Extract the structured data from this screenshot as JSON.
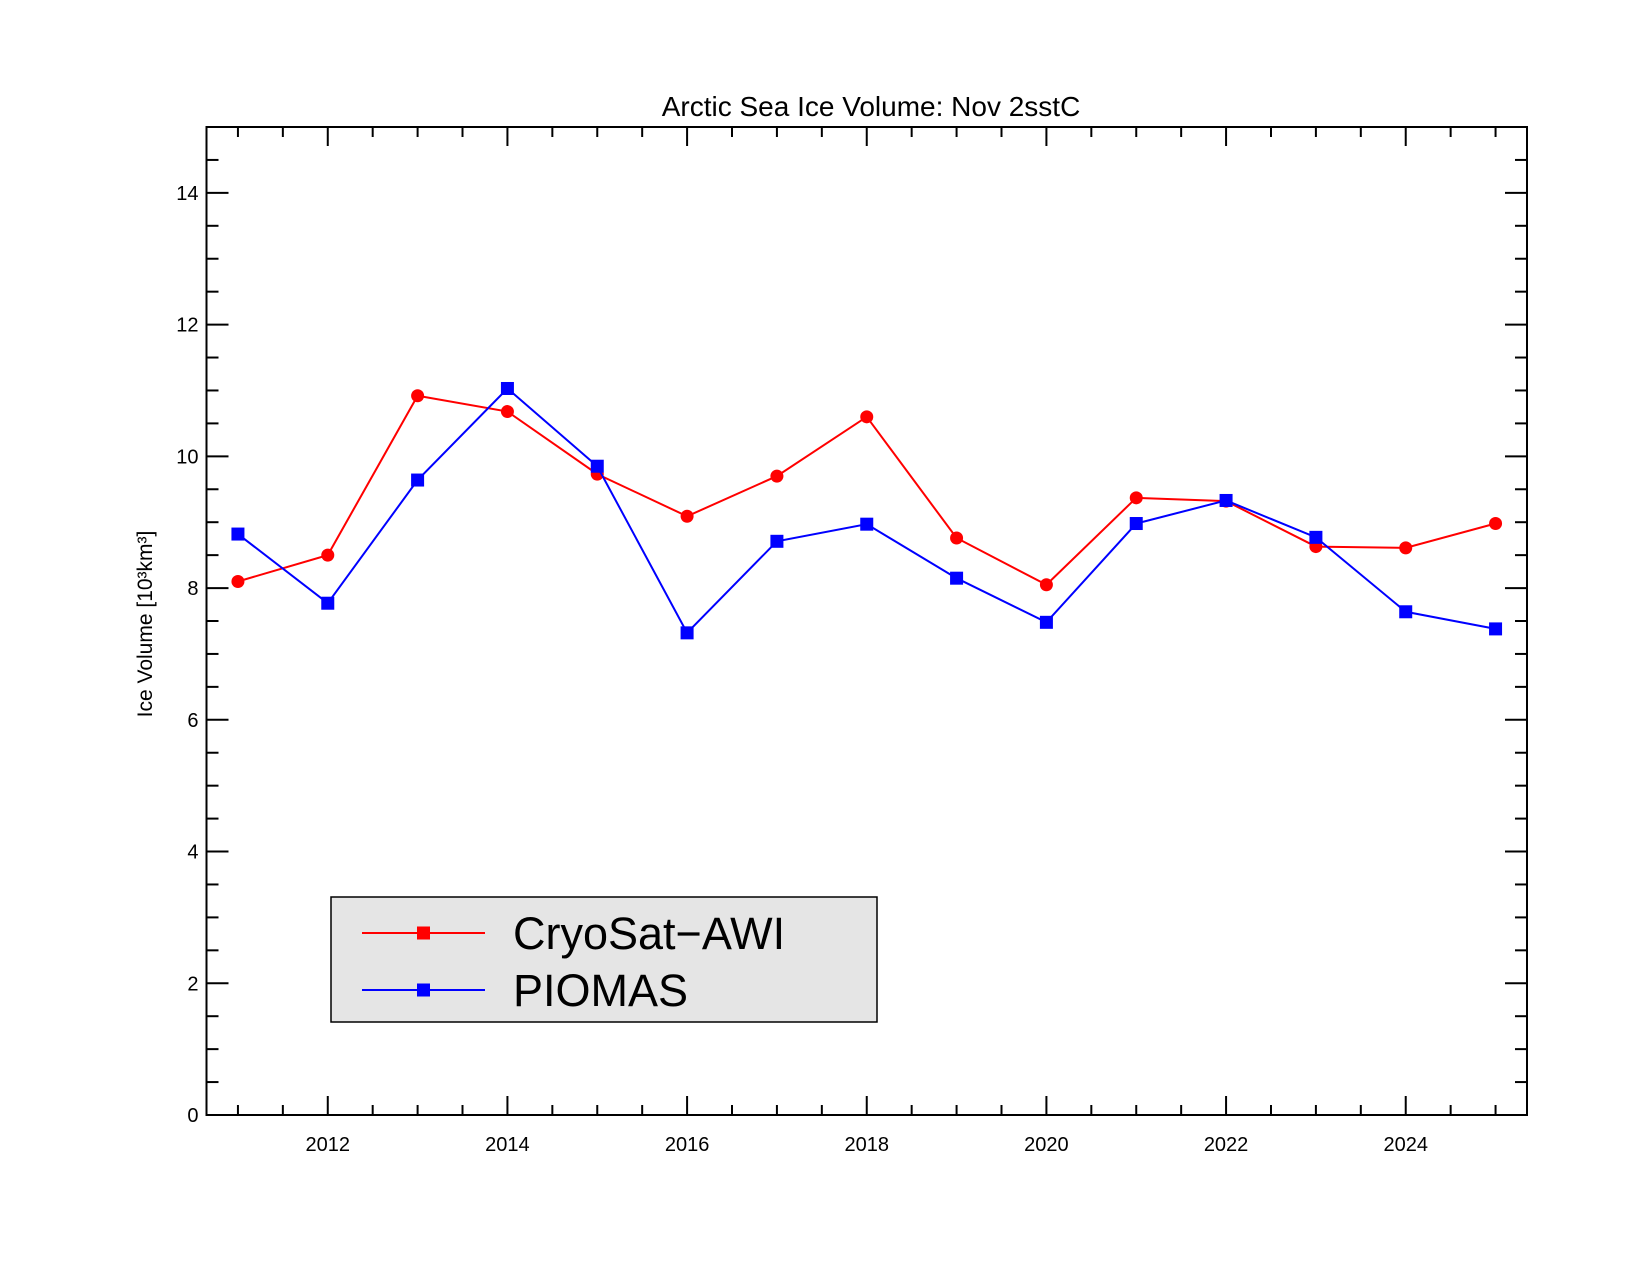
{
  "chart_data": {
    "type": "line",
    "title": "Arctic Sea Ice Volume: Nov 2sstC",
    "xlabel": "",
    "ylabel": "Ice Volume [10³km³]",
    "xlim": [
      2010.65,
      2025.35
    ],
    "ylim": [
      0,
      15
    ],
    "xticks": [
      2012,
      2014,
      2016,
      2018,
      2020,
      2022,
      2024
    ],
    "xtick_labels": [
      "2012",
      "2014",
      "2016",
      "2018",
      "2020",
      "2022",
      "2024"
    ],
    "yticks": [
      0,
      2,
      4,
      6,
      8,
      10,
      12,
      14
    ],
    "ytick_labels": [
      "0",
      "2",
      "4",
      "6",
      "8",
      "10",
      "12",
      "14"
    ],
    "grid": false,
    "legend_position": "bottom-left",
    "x": [
      2011,
      2012,
      2013,
      2014,
      2015,
      2016,
      2017,
      2018,
      2019,
      2020,
      2021,
      2022,
      2023,
      2024,
      2025
    ],
    "series": [
      {
        "name": "CryoSat−AWI",
        "color": "#ff0000",
        "marker": "circle",
        "values": [
          8.1,
          8.5,
          10.92,
          10.68,
          9.73,
          9.09,
          9.7,
          10.6,
          8.76,
          8.05,
          9.37,
          9.32,
          8.63,
          8.61,
          8.98
        ]
      },
      {
        "name": "PIOMAS",
        "color": "#0000ff",
        "marker": "square",
        "values": [
          8.82,
          7.77,
          9.64,
          11.03,
          9.85,
          7.32,
          8.71,
          8.97,
          8.15,
          7.48,
          8.98,
          9.33,
          8.77,
          7.64,
          7.38
        ]
      }
    ]
  }
}
